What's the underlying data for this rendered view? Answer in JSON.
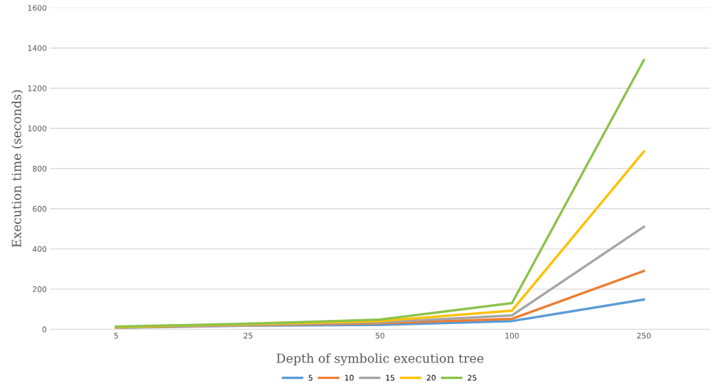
{
  "chart_data": {
    "type": "line",
    "xlabel": "Depth of symbolic execution tree",
    "ylabel": "Execution time (seconds)",
    "categories": [
      "5",
      "25",
      "50",
      "100",
      "250"
    ],
    "series": [
      {
        "name": "5",
        "color": "#5b9bd5",
        "values": [
          8,
          18,
          22,
          41,
          148
        ]
      },
      {
        "name": "10",
        "color": "#ed7d31",
        "values": [
          9,
          20,
          30,
          52,
          290
        ]
      },
      {
        "name": "15",
        "color": "#a5a5a5",
        "values": [
          10,
          22,
          35,
          69,
          510
        ]
      },
      {
        "name": "20",
        "color": "#ffc000",
        "values": [
          11,
          25,
          41,
          93,
          885
        ]
      },
      {
        "name": "25",
        "color": "#8bc34a",
        "values": [
          13,
          28,
          48,
          130,
          1340
        ]
      }
    ],
    "ylim": [
      0,
      1600
    ],
    "yticks": [
      0,
      200,
      400,
      600,
      800,
      1000,
      1200,
      1400,
      1600
    ],
    "grid": "y",
    "legend": "bottom",
    "marker": "none",
    "line_style": "solid"
  }
}
